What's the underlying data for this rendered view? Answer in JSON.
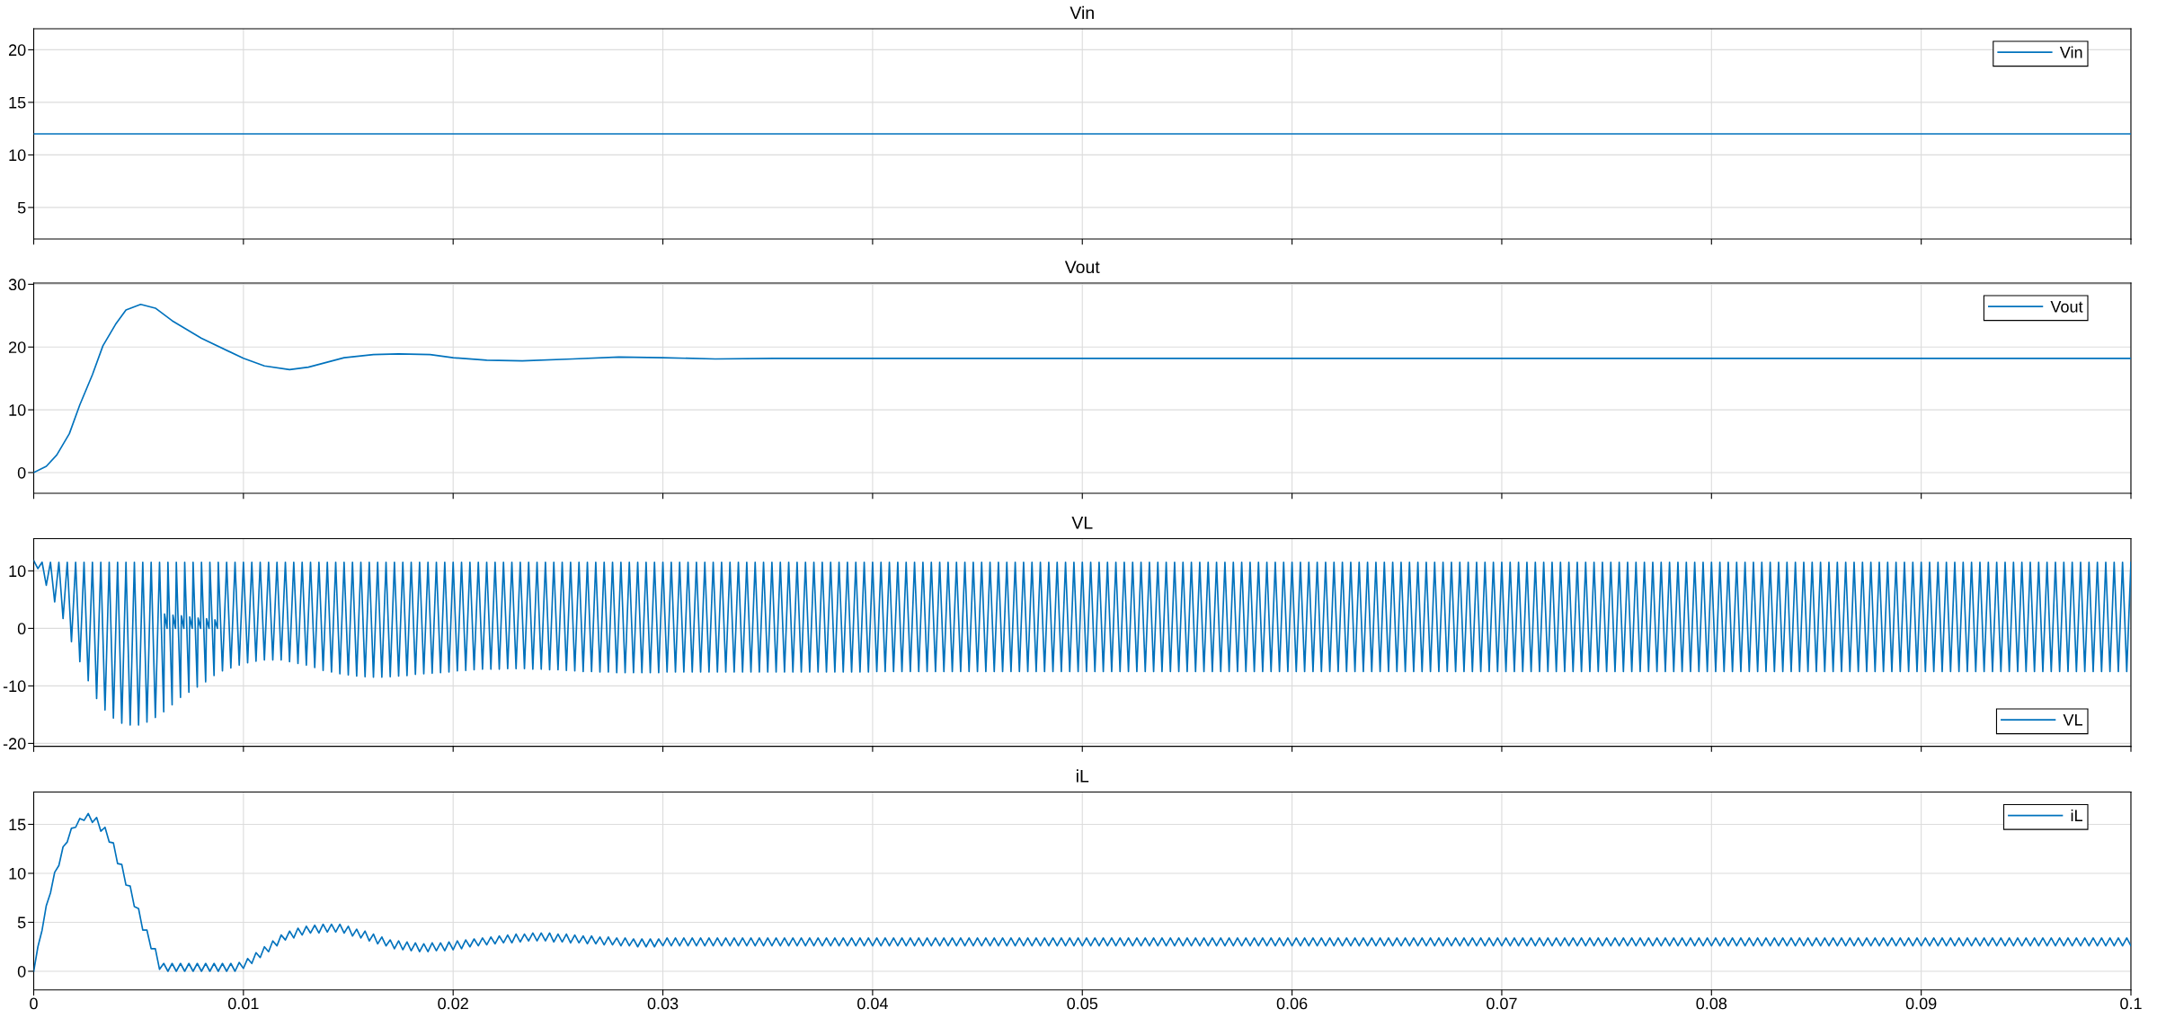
{
  "chart_data": [
    {
      "type": "line",
      "title": "Vin",
      "x": [
        0,
        0.1
      ],
      "series": [
        {
          "name": "Vin",
          "color": "#0072bd",
          "values": [
            12,
            12
          ]
        }
      ],
      "xlim": [
        0,
        0.1
      ],
      "xticks": [
        0,
        0.01,
        0.02,
        0.03,
        0.04,
        0.05,
        0.06,
        0.07,
        0.08,
        0.09,
        0.1
      ],
      "ylim": [
        2,
        22
      ],
      "yticks": [
        5,
        10,
        15,
        20
      ],
      "grid": true,
      "legend": "top right",
      "tick_labels": "y"
    },
    {
      "type": "line",
      "title": "Vout",
      "x": [
        0,
        0.0006,
        0.0011,
        0.0017,
        0.0022,
        0.0028,
        0.0033,
        0.0039,
        0.0044,
        0.0051,
        0.0058,
        0.0066,
        0.008,
        0.01,
        0.011,
        0.0122,
        0.0131,
        0.0148,
        0.0162,
        0.0174,
        0.0189,
        0.02,
        0.0216,
        0.0233,
        0.0257,
        0.0279,
        0.03,
        0.0325,
        0.0353,
        0.04,
        0.1
      ],
      "series": [
        {
          "name": "Vout",
          "color": "#0072bd",
          "values": [
            0,
            1,
            2.8,
            6.2,
            10.8,
            15.6,
            20.2,
            23.6,
            25.9,
            26.8,
            26.2,
            24.2,
            21.4,
            18.2,
            17,
            16.4,
            16.8,
            18.3,
            18.8,
            18.9,
            18.8,
            18.3,
            17.9,
            17.8,
            18.1,
            18.4,
            18.3,
            18.1,
            18.2,
            18.2,
            18.2
          ]
        }
      ],
      "xlim": [
        0,
        0.1
      ],
      "xticks": [
        0,
        0.01,
        0.02,
        0.03,
        0.04,
        0.05,
        0.06,
        0.07,
        0.08,
        0.09,
        0.1
      ],
      "ylim": [
        -3.3,
        30.2
      ],
      "yticks": [
        0,
        10,
        20,
        30
      ],
      "grid": true,
      "legend": "top right",
      "tick_labels": "y"
    },
    {
      "type": "line",
      "title": "VL",
      "x": [
        0,
        0.0002,
        0.0004,
        0.0006,
        0.0008,
        0.001,
        0.0012,
        0.0014,
        0.0016,
        0.0018,
        0.002,
        0.0022,
        0.0024,
        0.0026,
        0.0028,
        0.003,
        0.0032,
        0.0034,
        0.0036,
        0.0038,
        0.004,
        0.0042,
        0.0044,
        0.0046,
        0.0048,
        0.005,
        0.0052,
        0.0054,
        0.0056,
        0.0058,
        0.006,
        0.0062,
        0.00624,
        0.00636,
        0.0064,
        0.0066,
        0.00664,
        0.00676,
        0.0068,
        0.007,
        0.00704,
        0.00716,
        0.0072,
        0.0074,
        0.00744,
        0.00756,
        0.0076,
        0.0078,
        0.00784,
        0.00796,
        0.008,
        0.0082,
        0.00824,
        0.00836,
        0.0084,
        0.0086,
        0.00864,
        0.00876,
        0.0088,
        0.009,
        0.0092,
        0.0094,
        0.0096,
        0.0098,
        0.01,
        0.0102,
        0.0104,
        0.0106,
        0.0108,
        0.011,
        0.0112,
        0.0114,
        0.0116,
        0.0118,
        0.012,
        0.0122,
        0.0124,
        0.0126,
        0.0128,
        0.013,
        0.0132,
        0.0134,
        0.0136,
        0.0138,
        0.014,
        0.0142,
        0.0144,
        0.0146,
        0.0148,
        0.015,
        0.0152,
        0.0154,
        0.0156,
        0.0158,
        0.016,
        0.0162,
        0.0164,
        0.0166,
        0.0168,
        0.017,
        0.0172,
        0.0174,
        0.0176,
        0.0178,
        0.018,
        0.0182,
        0.0184,
        0.0186,
        0.0188,
        0.019,
        0.0192,
        0.0194,
        0.0196,
        0.0198,
        0.02,
        0.0202,
        0.0204,
        0.0206,
        0.0208,
        0.021,
        0.0212,
        0.0214,
        0.0216,
        0.0218,
        0.022,
        0.0222,
        0.0224,
        0.0226,
        0.0228,
        0.023,
        0.0232,
        0.0234,
        0.0236,
        0.0238,
        0.024,
        0.0242,
        0.0244,
        0.0246,
        0.0248,
        0.025,
        0.0252,
        0.0254,
        0.0256,
        0.0258,
        0.026,
        0.0262,
        0.0264,
        0.0266,
        0.0268,
        0.027,
        0.0272,
        0.0274,
        0.0276,
        0.0278,
        0.028,
        0.0282,
        0.0284,
        0.0286,
        0.0288,
        0.029,
        0.0292,
        0.0294,
        0.0296,
        0.0298,
        0.03,
        0.0302,
        0.0304,
        0.0306,
        0.0308,
        0.031,
        0.0312,
        0.0314,
        0.0316,
        0.0318,
        0.032,
        0.0322,
        0.0324,
        0.0326,
        0.0328,
        0.033,
        0.0332,
        0.0334,
        0.0336,
        0.0338,
        0.034,
        0.0342,
        0.0344,
        0.0346,
        0.0348,
        0.035,
        0.0352,
        0.0354,
        0.0356,
        0.0358,
        0.036,
        0.0362,
        0.0364,
        0.0366,
        0.0368,
        0.037,
        0.0372,
        0.0374,
        0.0376,
        0.0378,
        0.038,
        0.0382,
        0.0384,
        0.0386,
        0.0388,
        0.039,
        0.0392,
        0.0394,
        0.0396,
        0.0398,
        0.04,
        0.0402,
        0.0404,
        0.0406,
        0.0408,
        0.041,
        0.0412,
        0.0414,
        0.0416,
        0.0418,
        0.042,
        0.0422,
        0.0424,
        0.0426,
        0.0428,
        0.043,
        0.0432,
        0.0434,
        0.0436,
        0.0438,
        0.044,
        0.0442,
        0.0444,
        0.0446,
        0.0448,
        0.045,
        0.0452,
        0.0454,
        0.0456,
        0.0458,
        0.046,
        0.0462,
        0.0464,
        0.0466,
        0.0468,
        0.047,
        0.0472,
        0.0474,
        0.0476,
        0.0478,
        0.048,
        0.0482,
        0.0484,
        0.0486,
        0.0488,
        0.049,
        0.0492,
        0.0494,
        0.0496,
        0.0498,
        0.05,
        0.0502,
        0.0504,
        0.0506,
        0.0508,
        0.051,
        0.0512,
        0.0514,
        0.0516,
        0.0518,
        0.052,
        0.0522,
        0.0524,
        0.0526,
        0.0528,
        0.053,
        0.0532,
        0.0534,
        0.0536,
        0.0538,
        0.054,
        0.0542,
        0.0544,
        0.0546,
        0.0548,
        0.055,
        0.0552,
        0.0554,
        0.0556,
        0.0558,
        0.056,
        0.0562,
        0.0564,
        0.0566,
        0.0568,
        0.057,
        0.0572,
        0.0574,
        0.0576,
        0.0578,
        0.058,
        0.0582,
        0.0584,
        0.0586,
        0.0588,
        0.059,
        0.0592,
        0.0594,
        0.0596,
        0.0598,
        0.06,
        0.0602,
        0.0604,
        0.0606,
        0.0608,
        0.061,
        0.0612,
        0.0614,
        0.0616,
        0.0618,
        0.062,
        0.0622,
        0.0624,
        0.0626,
        0.0628,
        0.063,
        0.0632,
        0.0634,
        0.0636,
        0.0638,
        0.064,
        0.0642,
        0.0644,
        0.0646,
        0.0648,
        0.065,
        0.0652,
        0.0654,
        0.0656,
        0.0658,
        0.066,
        0.0662,
        0.0664,
        0.0666,
        0.0668,
        0.067,
        0.0672,
        0.0674,
        0.0676,
        0.0678,
        0.068,
        0.0682,
        0.0684,
        0.0686,
        0.0688,
        0.069,
        0.0692,
        0.0694,
        0.0696,
        0.0698,
        0.07,
        0.0702,
        0.0704,
        0.0706,
        0.0708,
        0.071,
        0.0712,
        0.0714,
        0.0716,
        0.0718,
        0.072,
        0.0722,
        0.0724,
        0.0726,
        0.0728,
        0.073,
        0.0732,
        0.0734,
        0.0736,
        0.0738,
        0.074,
        0.0742,
        0.0744,
        0.0746,
        0.0748,
        0.075,
        0.0752,
        0.0754,
        0.0756,
        0.0758,
        0.076,
        0.0762,
        0.0764,
        0.0766,
        0.0768,
        0.077,
        0.0772,
        0.0774,
        0.0776,
        0.0778,
        0.078,
        0.0782,
        0.0784,
        0.0786,
        0.0788,
        0.079,
        0.0792,
        0.0794,
        0.0796,
        0.0798,
        0.08,
        0.0802,
        0.0804,
        0.0806,
        0.0808,
        0.081,
        0.0812,
        0.0814,
        0.0816,
        0.0818,
        0.082,
        0.0822,
        0.0824,
        0.0826,
        0.0828,
        0.083,
        0.0832,
        0.0834,
        0.0836,
        0.0838,
        0.084,
        0.0842,
        0.0844,
        0.0846,
        0.0848,
        0.085,
        0.0852,
        0.0854,
        0.0856,
        0.0858,
        0.086,
        0.0862,
        0.0864,
        0.0866,
        0.0868,
        0.087,
        0.0872,
        0.0874,
        0.0876,
        0.0878,
        0.088,
        0.0882,
        0.0884,
        0.0886,
        0.0888,
        0.089,
        0.0892,
        0.0894,
        0.0896,
        0.0898,
        0.09,
        0.0902,
        0.0904,
        0.0906,
        0.0908,
        0.091,
        0.0912,
        0.0914,
        0.0916,
        0.0918,
        0.092,
        0.0922,
        0.0924,
        0.0926,
        0.0928,
        0.093,
        0.0932,
        0.0934,
        0.0936,
        0.0938,
        0.094,
        0.0942,
        0.0944,
        0.0946,
        0.0948,
        0.095,
        0.0952,
        0.0954,
        0.0956,
        0.0958,
        0.096,
        0.0962,
        0.0964,
        0.0966,
        0.0968,
        0.097,
        0.0972,
        0.0974,
        0.0976,
        0.0978,
        0.098,
        0.0982,
        0.0984,
        0.0986,
        0.0988,
        0.099,
        0.0992,
        0.0994,
        0.0996,
        0.0998,
        0.1
      ],
      "series": [
        {
          "name": "VL",
          "color": "#0072bd",
          "values": [
            11.8,
            10.4,
            11.5,
            7.5,
            11.5,
            4.6,
            11.5,
            1.7,
            11.5,
            -2.3,
            11.5,
            -5.8,
            11.5,
            -9.1,
            11.5,
            -12.2,
            11.5,
            -14.2,
            11.5,
            -15.6,
            11.5,
            -16.5,
            11.5,
            -16.8,
            11.5,
            -16.8,
            11.5,
            -16.3,
            11.5,
            -15.5,
            11.5,
            -14.5,
            2.5,
            0,
            11.5,
            -13.3,
            2.3,
            0,
            11.5,
            -12,
            2.2,
            0,
            11.5,
            -11.1,
            2,
            0,
            11.5,
            -10.2,
            1.8,
            0,
            11.5,
            -9.3,
            1.7,
            0,
            11.5,
            -8.2,
            1.5,
            0,
            11.5,
            -7.4,
            11.5,
            -6.9,
            11.5,
            -6.4,
            11.5,
            -6,
            11.5,
            -5.7,
            11.5,
            -5.5,
            11.5,
            -5.5,
            11.5,
            -5.5,
            11.5,
            -5.8,
            11.5,
            -6.1,
            11.5,
            -6.4,
            11.5,
            -6.8,
            11.5,
            -7.3,
            11.5,
            -7.6,
            11.5,
            -7.9,
            11.5,
            -8.1,
            11.5,
            -8.3,
            11.5,
            -8.4,
            11.5,
            -8.5,
            11.5,
            -8.5,
            11.5,
            -8.4,
            11.5,
            -8.3,
            11.5,
            -8.2,
            11.5,
            -8,
            11.5,
            -7.9,
            11.5,
            -7.8,
            11.5,
            -7.7,
            11.5,
            -7.6,
            11.5,
            -7.4,
            11.5,
            -7.3,
            11.5,
            -7.2,
            11.5,
            -7.1,
            11.5,
            -7.1,
            11.5,
            -7.1,
            11.5,
            -7,
            11.5,
            -7,
            11.5,
            -7,
            11.5,
            -7.1,
            11.5,
            -7.1,
            11.5,
            -7.2,
            11.5,
            -7.2,
            11.5,
            -7.3,
            11.5,
            -7.4,
            11.5,
            -7.5,
            11.5,
            -7.5,
            11.5,
            -7.6,
            11.5,
            -7.6,
            11.5,
            -7.7,
            11.5,
            -7.7,
            11.5,
            -7.7,
            11.5,
            -7.7,
            11.5,
            -7.7,
            11.5,
            -7.7,
            11.5,
            -7.6,
            11.5,
            -7.6,
            11.5,
            -7.6,
            11.5,
            -7.6,
            11.5,
            -7.6,
            11.5,
            -7.6,
            11.5,
            -7.6,
            11.5,
            -7.6,
            11.5,
            -7.6,
            11.5,
            -7.6,
            11.5,
            -7.6,
            11.5,
            -7.6,
            11.5,
            -7.6,
            11.5,
            -7.6,
            11.5,
            -7.6,
            11.5,
            -7.6,
            11.5,
            -7.6,
            11.5,
            -7.6,
            11.5,
            -7.6,
            11.5,
            -7.6,
            11.5,
            -7.6,
            11.5,
            -7.6,
            11.5,
            -7.6,
            11.5,
            -7.6,
            11.5,
            -7.6,
            11.5,
            -7.5,
            11.5,
            -7.5,
            11.5,
            -7.5,
            11.5,
            -7.5,
            11.5,
            -7.5,
            11.5,
            -7.5,
            11.5,
            -7.5,
            11.5,
            -7.5,
            11.5,
            -7.5,
            11.5,
            -7.5,
            11.5,
            -7.5,
            11.5,
            -7.5,
            11.5,
            -7.5,
            11.5,
            -7.5,
            11.5,
            -7.5,
            11.5,
            -7.5,
            11.5,
            -7.5,
            11.5,
            -7.5,
            11.5,
            -7.5,
            11.5,
            -7.5,
            11.5,
            -7.5,
            11.5,
            -7.5,
            11.5,
            -7.5,
            11.5,
            -7.5,
            11.5,
            -7.5,
            11.5,
            -7.5,
            11.5,
            -7.5,
            11.5,
            -7.5,
            11.5,
            -7.5,
            11.5,
            -7.5,
            11.5,
            -7.5,
            11.5,
            -7.5,
            11.5,
            -7.5,
            11.5,
            -7.5,
            11.5,
            -7.5,
            11.5,
            -7.5,
            11.5,
            -7.5,
            11.5,
            -7.5,
            11.5,
            -7.5,
            11.5,
            -7.5,
            11.5,
            -7.5,
            11.5,
            -7.5,
            11.5,
            -7.5,
            11.5,
            -7.5,
            11.5,
            -7.5,
            11.5,
            -7.5,
            11.5,
            -7.5,
            11.5,
            -7.5,
            11.5,
            -7.5,
            11.5,
            -7.5,
            11.5,
            -7.5,
            11.5,
            -7.5,
            11.5,
            -7.5,
            11.5,
            -7.5,
            11.5,
            -7.5,
            11.5,
            -7.5,
            11.5,
            -7.5,
            11.5,
            -7.5,
            11.5,
            -7.5,
            11.5,
            -7.5,
            11.5,
            -7.5,
            11.5,
            -7.5,
            11.5,
            -7.5,
            11.5,
            -7.5,
            11.5,
            -7.5,
            11.5,
            -7.5,
            11.5,
            -7.5,
            11.5,
            -7.5,
            11.5,
            -7.5,
            11.5,
            -7.5,
            11.5,
            -7.5,
            11.5,
            -7.5,
            11.5,
            -7.5,
            11.5,
            -7.5,
            11.5,
            -7.5,
            11.5,
            -7.5,
            11.5,
            -7.5,
            11.5,
            -7.5,
            11.5,
            -7.5,
            11.5,
            -7.5,
            11.5,
            -7.5,
            11.5,
            -7.5,
            11.5,
            -7.5,
            11.5,
            -7.5,
            11.5,
            -7.5,
            11.5,
            -7.5,
            11.5,
            -7.5,
            11.5,
            -7.5,
            11.5,
            -7.5,
            11.5,
            -7.5,
            11.5,
            -7.5,
            11.5,
            -7.5,
            11.5,
            -7.5,
            11.5,
            -7.5,
            11.5,
            -7.5,
            11.5,
            -7.5,
            11.5,
            -7.5,
            11.5,
            -7.5,
            11.5,
            -7.5,
            11.5,
            -7.5,
            11.5,
            -7.5,
            11.5,
            -7.5,
            11.5,
            -7.5,
            11.5,
            -7.5,
            11.5,
            -7.5,
            11.5,
            -7.5,
            11.5,
            -7.5,
            11.5,
            -7.5,
            11.5,
            -7.5,
            11.5,
            -7.5,
            11.5,
            -7.5,
            11.5,
            -7.5,
            11.5,
            -7.5,
            11.5,
            -7.5,
            11.5,
            -7.5,
            11.5,
            -7.5,
            11.5,
            -7.5,
            11.5,
            -7.5,
            11.5,
            -7.5,
            11.5,
            -7.5,
            11.5,
            -7.5,
            11.5,
            -7.5,
            11.5,
            -7.5,
            11.5,
            -7.5,
            11.5,
            -7.5,
            11.5,
            -7.5,
            11.5,
            -7.5,
            11.5,
            -7.5,
            11.5,
            -7.5,
            11.5,
            -7.5,
            11.5,
            -7.5,
            11.5,
            -7.5,
            11.5,
            -7.5,
            11.5,
            -7.5,
            11.5,
            -7.5,
            11.5,
            -7.5,
            11.5,
            -7.5,
            11.5,
            -7.5,
            11.5,
            -7.5,
            11.5,
            -7.5,
            11.5,
            -7.5,
            11.5,
            -7.5,
            11.5,
            -7.5,
            11.5,
            -7.5,
            11.5,
            -7.5,
            11.5,
            -7.5,
            11.5,
            -7.5,
            11.5,
            -7.5,
            11.5,
            -7.5,
            11.5,
            -7.5,
            11.5
          ]
        }
      ],
      "xlim": [
        0,
        0.1
      ],
      "xticks": [
        0,
        0.01,
        0.02,
        0.03,
        0.04,
        0.05,
        0.06,
        0.07,
        0.08,
        0.09,
        0.1
      ],
      "ylim": [
        -20.5,
        15.6
      ],
      "yticks": [
        -20,
        -10,
        0,
        10
      ],
      "grid": true,
      "legend": "bottom right",
      "tick_labels": "y"
    },
    {
      "type": "line",
      "title": "iL",
      "x": [
        0,
        0.0002,
        0.0004,
        0.0006,
        0.0008,
        0.001,
        0.0012,
        0.0014,
        0.0016,
        0.0018,
        0.002,
        0.0022,
        0.0024,
        0.0026,
        0.0028,
        0.003,
        0.0032,
        0.0034,
        0.0036,
        0.0038,
        0.004,
        0.0042,
        0.0044,
        0.0046,
        0.0048,
        0.005,
        0.0052,
        0.0054,
        0.0056,
        0.0058,
        0.006,
        0.0062,
        0.0064,
        0.0066,
        0.0068,
        0.007,
        0.0072,
        0.0074,
        0.0076,
        0.0078,
        0.008,
        0.0082,
        0.0084,
        0.0086,
        0.0088,
        0.009,
        0.0092,
        0.0094,
        0.0096,
        0.0098,
        0.01,
        0.0102,
        0.0104,
        0.0106,
        0.0108,
        0.011,
        0.0112,
        0.0114,
        0.0116,
        0.0118,
        0.012,
        0.0122,
        0.0124,
        0.0126,
        0.0128,
        0.013,
        0.0132,
        0.0134,
        0.0136,
        0.0138,
        0.014,
        0.0142,
        0.0144,
        0.0146,
        0.0148,
        0.015,
        0.0152,
        0.0154,
        0.0156,
        0.0158,
        0.016,
        0.0162,
        0.0164,
        0.0166,
        0.0168,
        0.017,
        0.0172,
        0.0174,
        0.0176,
        0.0178,
        0.018,
        0.0182,
        0.0184,
        0.0186,
        0.0188,
        0.019,
        0.0192,
        0.0194,
        0.0196,
        0.0198,
        0.02,
        0.0202,
        0.0204,
        0.0206,
        0.0208,
        0.021,
        0.0212,
        0.0214,
        0.0216,
        0.0218,
        0.022,
        0.0222,
        0.0224,
        0.0226,
        0.0228,
        0.023,
        0.0232,
        0.0234,
        0.0236,
        0.0238,
        0.024,
        0.0242,
        0.0244,
        0.0246,
        0.0248,
        0.025,
        0.0252,
        0.0254,
        0.0256,
        0.0258,
        0.026,
        0.0262,
        0.0264,
        0.0266,
        0.0268,
        0.027,
        0.0272,
        0.0274,
        0.0276,
        0.0278,
        0.028,
        0.0282,
        0.0284,
        0.0286,
        0.0288,
        0.029,
        0.0292,
        0.0294,
        0.0296,
        0.0298,
        0.03,
        0.0302,
        0.0304,
        0.0306,
        0.0308,
        0.031,
        0.0312,
        0.0314,
        0.0316,
        0.0318,
        0.032,
        0.0322,
        0.0324,
        0.0326,
        0.0328,
        0.033,
        0.0332,
        0.0334,
        0.0336,
        0.0338,
        0.034,
        0.0342,
        0.0344,
        0.0346,
        0.0348,
        0.035,
        0.0352,
        0.0354,
        0.0356,
        0.0358,
        0.036,
        0.0362,
        0.0364,
        0.0366,
        0.0368,
        0.037,
        0.0372,
        0.0374,
        0.0376,
        0.0378,
        0.038,
        0.0382,
        0.0384,
        0.0386,
        0.0388,
        0.039,
        0.0392,
        0.0394,
        0.0396,
        0.0398,
        0.04,
        0.0402,
        0.0404,
        0.0406,
        0.0408,
        0.041,
        0.0412,
        0.0414,
        0.0416,
        0.0418,
        0.042,
        0.0422,
        0.0424,
        0.0426,
        0.0428,
        0.043,
        0.0432,
        0.0434,
        0.0436,
        0.0438,
        0.044,
        0.0442,
        0.0444,
        0.0446,
        0.0448,
        0.045,
        0.0452,
        0.0454,
        0.0456,
        0.0458,
        0.046,
        0.0462,
        0.0464,
        0.0466,
        0.0468,
        0.047,
        0.0472,
        0.0474,
        0.0476,
        0.0478,
        0.048,
        0.0482,
        0.0484,
        0.0486,
        0.0488,
        0.049,
        0.0492,
        0.0494,
        0.0496,
        0.0498,
        0.05,
        0.0502,
        0.0504,
        0.0506,
        0.0508,
        0.051,
        0.0512,
        0.0514,
        0.0516,
        0.0518,
        0.052,
        0.0522,
        0.0524,
        0.0526,
        0.0528,
        0.053,
        0.0532,
        0.0534,
        0.0536,
        0.0538,
        0.054,
        0.0542,
        0.0544,
        0.0546,
        0.0548,
        0.055,
        0.0552,
        0.0554,
        0.0556,
        0.0558,
        0.056,
        0.0562,
        0.0564,
        0.0566,
        0.0568,
        0.057,
        0.0572,
        0.0574,
        0.0576,
        0.0578,
        0.058,
        0.0582,
        0.0584,
        0.0586,
        0.0588,
        0.059,
        0.0592,
        0.0594,
        0.0596,
        0.0598,
        0.06,
        0.0602,
        0.0604,
        0.0606,
        0.0608,
        0.061,
        0.0612,
        0.0614,
        0.0616,
        0.0618,
        0.062,
        0.0622,
        0.0624,
        0.0626,
        0.0628,
        0.063,
        0.0632,
        0.0634,
        0.0636,
        0.0638,
        0.064,
        0.0642,
        0.0644,
        0.0646,
        0.0648,
        0.065,
        0.0652,
        0.0654,
        0.0656,
        0.0658,
        0.066,
        0.0662,
        0.0664,
        0.0666,
        0.0668,
        0.067,
        0.0672,
        0.0674,
        0.0676,
        0.0678,
        0.068,
        0.0682,
        0.0684,
        0.0686,
        0.0688,
        0.069,
        0.0692,
        0.0694,
        0.0696,
        0.0698,
        0.07,
        0.0702,
        0.0704,
        0.0706,
        0.0708,
        0.071,
        0.0712,
        0.0714,
        0.0716,
        0.0718,
        0.072,
        0.0722,
        0.0724,
        0.0726,
        0.0728,
        0.073,
        0.0732,
        0.0734,
        0.0736,
        0.0738,
        0.074,
        0.0742,
        0.0744,
        0.0746,
        0.0748,
        0.075,
        0.0752,
        0.0754,
        0.0756,
        0.0758,
        0.076,
        0.0762,
        0.0764,
        0.0766,
        0.0768,
        0.077,
        0.0772,
        0.0774,
        0.0776,
        0.0778,
        0.078,
        0.0782,
        0.0784,
        0.0786,
        0.0788,
        0.079,
        0.0792,
        0.0794,
        0.0796,
        0.0798,
        0.08,
        0.0802,
        0.0804,
        0.0806,
        0.0808,
        0.081,
        0.0812,
        0.0814,
        0.0816,
        0.0818,
        0.082,
        0.0822,
        0.0824,
        0.0826,
        0.0828,
        0.083,
        0.0832,
        0.0834,
        0.0836,
        0.0838,
        0.084,
        0.0842,
        0.0844,
        0.0846,
        0.0848,
        0.085,
        0.0852,
        0.0854,
        0.0856,
        0.0858,
        0.086,
        0.0862,
        0.0864,
        0.0866,
        0.0868,
        0.087,
        0.0872,
        0.0874,
        0.0876,
        0.0878,
        0.088,
        0.0882,
        0.0884,
        0.0886,
        0.0888,
        0.089,
        0.0892,
        0.0894,
        0.0896,
        0.0898,
        0.09,
        0.0902,
        0.0904,
        0.0906,
        0.0908,
        0.091,
        0.0912,
        0.0914,
        0.0916,
        0.0918,
        0.092,
        0.0922,
        0.0924,
        0.0926,
        0.0928,
        0.093,
        0.0932,
        0.0934,
        0.0936,
        0.0938,
        0.094,
        0.0942,
        0.0944,
        0.0946,
        0.0948,
        0.095,
        0.0952,
        0.0954,
        0.0956,
        0.0958,
        0.096,
        0.0962,
        0.0964,
        0.0966,
        0.0968,
        0.097,
        0.0972,
        0.0974,
        0.0976,
        0.0978,
        0.098,
        0.0982,
        0.0984,
        0.0986,
        0.0988,
        0.099,
        0.0992,
        0.0994,
        0.0996,
        0.0998,
        0.1
      ],
      "series": [
        {
          "name": "iL",
          "color": "#0072bd",
          "values": [
            0,
            2.5,
            4.2,
            6.7,
            8,
            10.1,
            10.8,
            12.7,
            13.2,
            14.6,
            14.7,
            15.6,
            15.4,
            16.1,
            15.2,
            15.7,
            14.3,
            14.7,
            13.2,
            13.1,
            11,
            10.9,
            8.8,
            8.7,
            6.6,
            6.4,
            4.2,
            4.2,
            2.3,
            2.3,
            0.2,
            0.8,
            0,
            0.8,
            0,
            0.8,
            0,
            0.8,
            0,
            0.8,
            0,
            0.8,
            0,
            0.8,
            0,
            0.8,
            0,
            0.8,
            0,
            0.9,
            0.3,
            1.3,
            0.8,
            1.9,
            1.4,
            2.5,
            2,
            3.1,
            2.6,
            3.7,
            3.2,
            4.1,
            3.4,
            4.4,
            3.7,
            4.6,
            3.9,
            4.7,
            3.9,
            4.8,
            4,
            4.8,
            4,
            4.8,
            3.9,
            4.6,
            3.6,
            4.3,
            3.4,
            4.1,
            3.1,
            3.8,
            2.8,
            3.5,
            2.6,
            3.2,
            2.3,
            3.1,
            2.2,
            3,
            2.1,
            2.9,
            2,
            2.8,
            2,
            2.9,
            2.1,
            2.9,
            2.1,
            3,
            2.2,
            3.1,
            2.3,
            3.2,
            2.5,
            3.3,
            2.6,
            3.4,
            2.7,
            3.5,
            2.8,
            3.6,
            2.9,
            3.7,
            2.9,
            3.8,
            3,
            3.8,
            3.1,
            3.9,
            3.1,
            3.9,
            3.1,
            3.9,
            3,
            3.8,
            3,
            3.8,
            2.9,
            3.7,
            2.9,
            3.6,
            2.8,
            3.6,
            2.8,
            3.5,
            2.7,
            3.5,
            2.7,
            3.4,
            2.6,
            3.4,
            2.6,
            3.3,
            2.5,
            3.3,
            2.5,
            3.3,
            2.5,
            3.3,
            2.6,
            3.4,
            2.6,
            3.4,
            2.6,
            3.4,
            2.6,
            3.4,
            2.6,
            3.4,
            2.6,
            3.4,
            2.6,
            3.4,
            2.6,
            3.4,
            2.6,
            3.4,
            2.6,
            3.4,
            2.6,
            3.4,
            2.6,
            3.4,
            2.6,
            3.4,
            2.6,
            3.4,
            2.6,
            3.4,
            2.6,
            3.4,
            2.6,
            3.4,
            2.6,
            3.4,
            2.6,
            3.4,
            2.6,
            3.4,
            2.6,
            3.4,
            2.6,
            3.4,
            2.6,
            3.4,
            2.6,
            3.4,
            2.6,
            3.4,
            2.6,
            3.4,
            2.6,
            3.4,
            2.6,
            3.4,
            2.6,
            3.4,
            2.6,
            3.4,
            2.6,
            3.4,
            2.6,
            3.4,
            2.6,
            3.4,
            2.6,
            3.4,
            2.6,
            3.4,
            2.6,
            3.4,
            2.6,
            3.4,
            2.6,
            3.4,
            2.6,
            3.4,
            2.6,
            3.4,
            2.6,
            3.4,
            2.6,
            3.4,
            2.6,
            3.4,
            2.6,
            3.4,
            2.6,
            3.4,
            2.6,
            3.4,
            2.6,
            3.4,
            2.6,
            3.4,
            2.6,
            3.4,
            2.6,
            3.4,
            2.6,
            3.4,
            2.6,
            3.4,
            2.6,
            3.4,
            2.6,
            3.4,
            2.6,
            3.4,
            2.6,
            3.4,
            2.6,
            3.4,
            2.6,
            3.4,
            2.6,
            3.4,
            2.6,
            3.4,
            2.6,
            3.4,
            2.6,
            3.4,
            2.6,
            3.4,
            2.6,
            3.4,
            2.6,
            3.4,
            2.6,
            3.4,
            2.6,
            3.4,
            2.6,
            3.4,
            2.6,
            3.4,
            2.6,
            3.4,
            2.6,
            3.4,
            2.6,
            3.4,
            2.6,
            3.4,
            2.6,
            3.4,
            2.6,
            3.4,
            2.6,
            3.4,
            2.6,
            3.4,
            2.6,
            3.4,
            2.6,
            3.4,
            2.6,
            3.4,
            2.6,
            3.4,
            2.6,
            3.4,
            2.6,
            3.4,
            2.6,
            3.4,
            2.6,
            3.4,
            2.6,
            3.4,
            2.6,
            3.4,
            2.6,
            3.4,
            2.6,
            3.4,
            2.6,
            3.4,
            2.6,
            3.4,
            2.6,
            3.4,
            2.6,
            3.4,
            2.6,
            3.4,
            2.6,
            3.4,
            2.6,
            3.4,
            2.6,
            3.4,
            2.6,
            3.4,
            2.6,
            3.4,
            2.6,
            3.4,
            2.6,
            3.4,
            2.6,
            3.4,
            2.6,
            3.4,
            2.6,
            3.4,
            2.6,
            3.4,
            2.6,
            3.4,
            2.6,
            3.4,
            2.6,
            3.4,
            2.6,
            3.4,
            2.6,
            3.4,
            2.6,
            3.4,
            2.6,
            3.4,
            2.6,
            3.4,
            2.6,
            3.4,
            2.6,
            3.4,
            2.6,
            3.4,
            2.6,
            3.4,
            2.6,
            3.4,
            2.6,
            3.4,
            2.6,
            3.4,
            2.6,
            3.4,
            2.6,
            3.4,
            2.6,
            3.4,
            2.6,
            3.4,
            2.6,
            3.4,
            2.6,
            3.4,
            2.6,
            3.4,
            2.6,
            3.4,
            2.6,
            3.4,
            2.6,
            3.4,
            2.6,
            3.4,
            2.6,
            3.4,
            2.6,
            3.4,
            2.6,
            3.4,
            2.6,
            3.4,
            2.6,
            3.4,
            2.6,
            3.4,
            2.6,
            3.4,
            2.6,
            3.4,
            2.6,
            3.4,
            2.6,
            3.4,
            2.6,
            3.4,
            2.6,
            3.4,
            2.6,
            3.4,
            2.6,
            3.4,
            2.6,
            3.4,
            2.6,
            3.4,
            2.6,
            3.4,
            2.6,
            3.4,
            2.6,
            3.4,
            2.6,
            3.4,
            2.6,
            3.4,
            2.6,
            3.4,
            2.6,
            3.4,
            2.6,
            3.4,
            2.6,
            3.4,
            2.6,
            3.4,
            2.6,
            3.4,
            2.6,
            3.4,
            2.6,
            3.4,
            2.6,
            3.4,
            2.6,
            3.4,
            2.6,
            3.4,
            2.6,
            3.4,
            2.6,
            3.4,
            2.6,
            3.4,
            2.6,
            3.4,
            2.6,
            3.4,
            2.6,
            3.4,
            2.6,
            3.4,
            2.6,
            3.4,
            2.6,
            3.4,
            2.6,
            3.4,
            2.6,
            3.4,
            2.6,
            3.4,
            2.6
          ]
        }
      ],
      "xlim": [
        0,
        0.1
      ],
      "xticks": [
        0,
        0.01,
        0.02,
        0.03,
        0.04,
        0.05,
        0.06,
        0.07,
        0.08,
        0.09,
        0.1
      ],
      "ylim": [
        -1.9,
        18.3
      ],
      "yticks": [
        0,
        5,
        10,
        15
      ],
      "grid": true,
      "legend": "top right"
    }
  ]
}
